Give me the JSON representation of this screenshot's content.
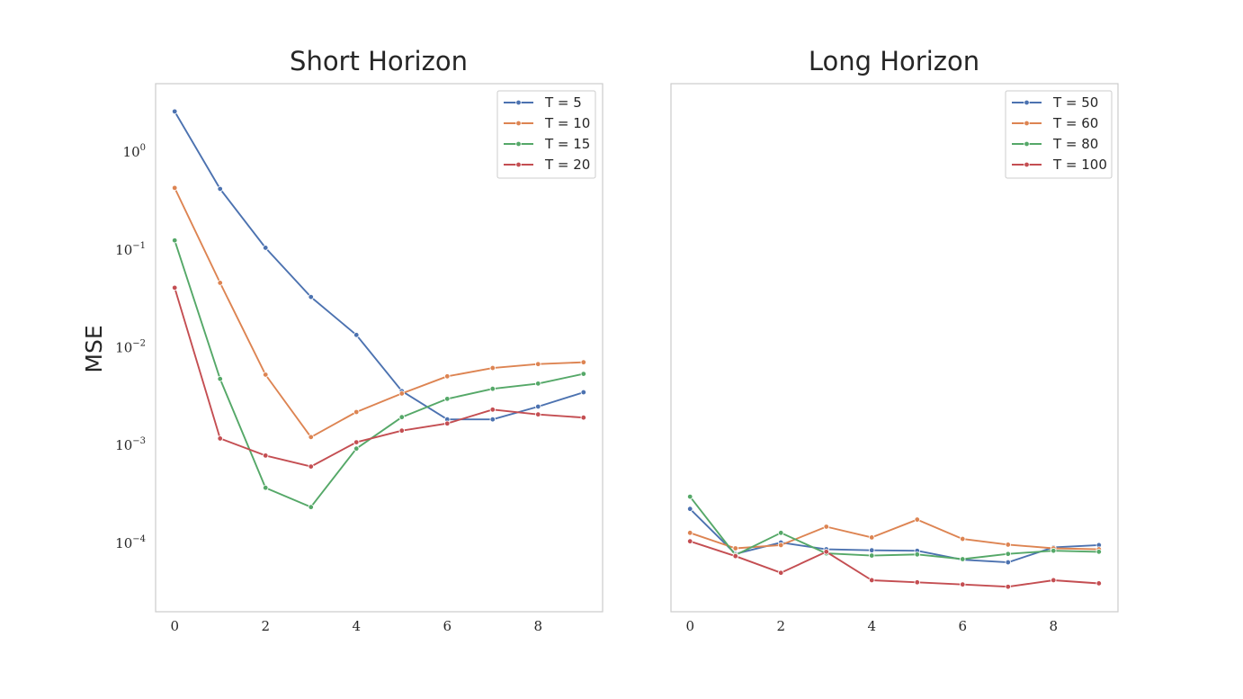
{
  "chart_data": [
    {
      "type": "line",
      "title": "Short Horizon",
      "ylabel": "MSE",
      "xlabel": "",
      "yscale": "log",
      "x": [
        0,
        1,
        2,
        3,
        4,
        5,
        6,
        7,
        8,
        9
      ],
      "xticks": [
        "0",
        "2",
        "4",
        "6",
        "8"
      ],
      "yticks": [
        {
          "base": "10",
          "exp": "0"
        },
        {
          "base": "10",
          "exp": "−1"
        },
        {
          "base": "10",
          "exp": "−2"
        },
        {
          "base": "10",
          "exp": "−3"
        },
        {
          "base": "10",
          "exp": "−4"
        }
      ],
      "xlim": [
        -0.42,
        9.42
      ],
      "ylim": [
        2e-05,
        5
      ],
      "grid": false,
      "legend_position": "top-right",
      "series": [
        {
          "name": "T = 5",
          "color": "#4c72b0",
          "values": [
            2.6,
            0.42,
            0.105,
            0.033,
            0.0135,
            0.0036,
            0.00185,
            0.00185,
            0.0025,
            0.0035
          ]
        },
        {
          "name": "T = 10",
          "color": "#dd8452",
          "values": [
            0.43,
            0.046,
            0.0053,
            0.00122,
            0.0022,
            0.0034,
            0.0051,
            0.0062,
            0.0068,
            0.0071
          ]
        },
        {
          "name": "T = 15",
          "color": "#55a868",
          "values": [
            0.125,
            0.0048,
            0.00037,
            0.000235,
            0.00093,
            0.00195,
            0.003,
            0.0038,
            0.0043,
            0.0054
          ]
        },
        {
          "name": "T = 20",
          "color": "#c44e52",
          "values": [
            0.041,
            0.00118,
            0.00079,
            0.00061,
            0.00108,
            0.00142,
            0.00168,
            0.00233,
            0.00208,
            0.00193
          ]
        }
      ]
    },
    {
      "type": "line",
      "title": "Long Horizon",
      "ylabel": "",
      "xlabel": "",
      "yscale": "log",
      "x": [
        0,
        1,
        2,
        3,
        4,
        5,
        6,
        7,
        8,
        9
      ],
      "xticks": [
        "0",
        "2",
        "4",
        "6",
        "8"
      ],
      "yticks": [],
      "xlim": [
        -0.42,
        9.42
      ],
      "ylim": [
        2e-05,
        5
      ],
      "grid": false,
      "legend_position": "top-right",
      "series": [
        {
          "name": "T = 50",
          "color": "#4c72b0",
          "values": [
            0.000225,
            7.8e-05,
            0.000102,
            8.7e-05,
            8.5e-05,
            8.4e-05,
            6.8e-05,
            6.4e-05,
            9.1e-05,
            9.6e-05
          ]
        },
        {
          "name": "T = 60",
          "color": "#dd8452",
          "values": [
            0.000128,
            8.9e-05,
            9.6e-05,
            0.000148,
            0.000115,
            0.000175,
            0.000111,
            9.7e-05,
            8.9e-05,
            8.7e-05
          ]
        },
        {
          "name": "T = 80",
          "color": "#55a868",
          "values": [
            0.0003,
            7.6e-05,
            0.000128,
            7.9e-05,
            7.5e-05,
            7.7e-05,
            6.9e-05,
            7.8e-05,
            8.4e-05,
            8.2e-05
          ]
        },
        {
          "name": "T = 100",
          "color": "#c44e52",
          "values": [
            0.000105,
            7.4e-05,
            5e-05,
            8.2e-05,
            4.2e-05,
            4e-05,
            3.8e-05,
            3.6e-05,
            4.2e-05,
            3.9e-05
          ]
        }
      ]
    }
  ]
}
